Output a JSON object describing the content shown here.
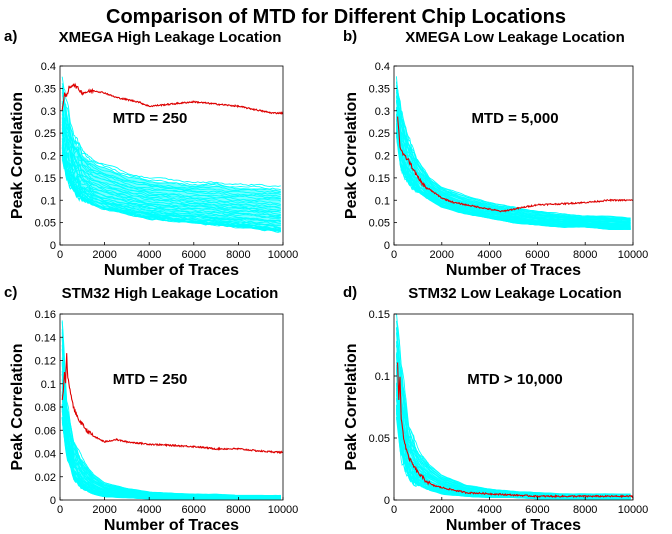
{
  "figure_title": "Comparison of MTD for Different Chip Locations",
  "colors": {
    "other_keys": "#00FFFF",
    "correct_key": "#DD0000",
    "axes": "#000000"
  },
  "chart_data": [
    {
      "type": "line",
      "panel": "a)",
      "title": "XMEGA High Leakage Location",
      "xlabel": "Number of Traces",
      "ylabel": "Peak Correlation",
      "annotation": "MTD = 250",
      "xlim": [
        0,
        10000
      ],
      "ylim": [
        0,
        0.4
      ],
      "xticks": [
        0,
        2000,
        4000,
        6000,
        8000,
        10000
      ],
      "yticks": [
        0,
        0.05,
        0.1,
        0.15,
        0.2,
        0.25,
        0.3,
        0.35,
        0.4
      ],
      "ytick_labels": [
        "0",
        "0.05",
        "0.1",
        "0.15",
        "0.2",
        "0.25",
        "0.3",
        "0.35",
        "0.4"
      ],
      "incorrect_band": {
        "x": [
          100,
          300,
          600,
          1000,
          1500,
          2000,
          3000,
          4000,
          5000,
          6000,
          7000,
          8000,
          9000,
          10000
        ],
        "upper": [
          0.37,
          0.31,
          0.25,
          0.21,
          0.19,
          0.18,
          0.16,
          0.15,
          0.145,
          0.14,
          0.14,
          0.135,
          0.135,
          0.13
        ],
        "lower": [
          0.2,
          0.15,
          0.12,
          0.1,
          0.09,
          0.08,
          0.07,
          0.06,
          0.055,
          0.05,
          0.045,
          0.04,
          0.035,
          0.03
        ],
        "n_traces": 40
      },
      "correct_key": {
        "x": [
          100,
          200,
          300,
          400,
          600,
          800,
          1000,
          1500,
          2000,
          2500,
          3000,
          3500,
          4000,
          5000,
          6000,
          7000,
          8000,
          8500,
          9000,
          9500,
          10000
        ],
        "y": [
          0.3,
          0.34,
          0.33,
          0.35,
          0.36,
          0.35,
          0.34,
          0.345,
          0.34,
          0.33,
          0.325,
          0.32,
          0.31,
          0.315,
          0.32,
          0.315,
          0.31,
          0.305,
          0.3,
          0.295,
          0.295
        ]
      }
    },
    {
      "type": "line",
      "panel": "b)",
      "title": "XMEGA Low Leakage Location",
      "xlabel": "Number of Traces",
      "ylabel": "Peak Correlation",
      "annotation": "MTD = 5,000",
      "xlim": [
        0,
        10000
      ],
      "ylim": [
        0,
        0.4
      ],
      "xticks": [
        0,
        2000,
        4000,
        6000,
        8000,
        10000
      ],
      "yticks": [
        0,
        0.05,
        0.1,
        0.15,
        0.2,
        0.25,
        0.3,
        0.35,
        0.4
      ],
      "ytick_labels": [
        "0",
        "0.05",
        "0.1",
        "0.15",
        "0.2",
        "0.25",
        "0.3",
        "0.35",
        "0.4"
      ],
      "incorrect_band": {
        "x": [
          100,
          300,
          600,
          1000,
          1500,
          2000,
          3000,
          4000,
          5000,
          6000,
          7000,
          8000,
          9000,
          10000
        ],
        "upper": [
          0.37,
          0.3,
          0.24,
          0.19,
          0.15,
          0.13,
          0.11,
          0.095,
          0.085,
          0.075,
          0.07,
          0.065,
          0.065,
          0.06
        ],
        "lower": [
          0.25,
          0.17,
          0.14,
          0.12,
          0.1,
          0.085,
          0.07,
          0.06,
          0.05,
          0.045,
          0.04,
          0.04,
          0.035,
          0.035
        ],
        "n_traces": 40
      },
      "correct_key": {
        "x": [
          150,
          250,
          400,
          600,
          800,
          1000,
          1300,
          1600,
          2000,
          2500,
          3000,
          3500,
          4000,
          4500,
          5000,
          5500,
          6000,
          7000,
          8000,
          9000,
          9500,
          10000
        ],
        "y": [
          0.29,
          0.22,
          0.2,
          0.19,
          0.17,
          0.15,
          0.13,
          0.12,
          0.105,
          0.095,
          0.09,
          0.085,
          0.08,
          0.075,
          0.08,
          0.085,
          0.09,
          0.092,
          0.095,
          0.1,
          0.1,
          0.1
        ]
      }
    },
    {
      "type": "line",
      "panel": "c)",
      "title": "STM32 High Leakage Location",
      "xlabel": "Number of Traces",
      "ylabel": "Peak Correlation",
      "annotation": "MTD = 250",
      "xlim": [
        0,
        10000
      ],
      "ylim": [
        0,
        0.16
      ],
      "xticks": [
        0,
        2000,
        4000,
        6000,
        8000,
        10000
      ],
      "yticks": [
        0,
        0.02,
        0.04,
        0.06,
        0.08,
        0.1,
        0.12,
        0.14,
        0.16
      ],
      "ytick_labels": [
        "0",
        "0.02",
        "0.04",
        "0.06",
        "0.08",
        "0.1",
        "0.12",
        "0.14",
        "0.16"
      ],
      "incorrect_band": {
        "x": [
          100,
          300,
          600,
          1000,
          1500,
          2000,
          3000,
          4000,
          5000,
          6000,
          7000,
          8000,
          9000,
          10000
        ],
        "upper": [
          0.155,
          0.085,
          0.05,
          0.035,
          0.022,
          0.015,
          0.01,
          0.007,
          0.006,
          0.005,
          0.005,
          0.004,
          0.004,
          0.004
        ],
        "lower": [
          0.07,
          0.04,
          0.02,
          0.01,
          0.005,
          0.003,
          0.002,
          0.001,
          0.001,
          0.001,
          0.001,
          0.001,
          0.001,
          0.001
        ],
        "n_traces": 40
      },
      "correct_key": {
        "x": [
          100,
          150,
          200,
          250,
          300,
          350,
          400,
          500,
          600,
          800,
          1000,
          1200,
          1500,
          2000,
          2500,
          3000,
          4000,
          5000,
          6000,
          7000,
          8000,
          9000,
          10000
        ],
        "y": [
          0.085,
          0.095,
          0.11,
          0.1,
          0.125,
          0.105,
          0.1,
          0.09,
          0.08,
          0.07,
          0.065,
          0.06,
          0.055,
          0.05,
          0.052,
          0.05,
          0.048,
          0.047,
          0.046,
          0.044,
          0.044,
          0.042,
          0.041
        ]
      }
    },
    {
      "type": "line",
      "panel": "d)",
      "title": "STM32 Low Leakage Location",
      "xlabel": "Number of Traces",
      "ylabel": "Peak Correlation",
      "annotation": "MTD > 10,000",
      "xlim": [
        0,
        10000
      ],
      "ylim": [
        0,
        0.15
      ],
      "xticks": [
        0,
        2000,
        4000,
        6000,
        8000,
        10000
      ],
      "yticks": [
        0,
        0.05,
        0.1,
        0.15
      ],
      "ytick_labels": [
        "0",
        "0.05",
        "0.1",
        "0.15"
      ],
      "incorrect_band": {
        "x": [
          100,
          300,
          600,
          1000,
          1500,
          2000,
          3000,
          4000,
          5000,
          6000,
          7000,
          8000,
          9000,
          10000
        ],
        "upper": [
          0.15,
          0.11,
          0.06,
          0.04,
          0.028,
          0.02,
          0.012,
          0.009,
          0.007,
          0.006,
          0.005,
          0.005,
          0.005,
          0.005
        ],
        "lower": [
          0.07,
          0.04,
          0.02,
          0.012,
          0.008,
          0.005,
          0.003,
          0.002,
          0.002,
          0.001,
          0.001,
          0.001,
          0.001,
          0.001
        ],
        "n_traces": 40
      },
      "correct_key": {
        "x": [
          150,
          200,
          250,
          300,
          350,
          400,
          500,
          600,
          800,
          1000,
          1300,
          1600,
          2000,
          2500,
          3000,
          4000,
          5000,
          6000,
          8000,
          10000
        ],
        "y": [
          0.11,
          0.08,
          0.1,
          0.065,
          0.06,
          0.05,
          0.042,
          0.035,
          0.028,
          0.022,
          0.016,
          0.012,
          0.01,
          0.008,
          0.006,
          0.005,
          0.004,
          0.003,
          0.003,
          0.003
        ]
      }
    }
  ]
}
